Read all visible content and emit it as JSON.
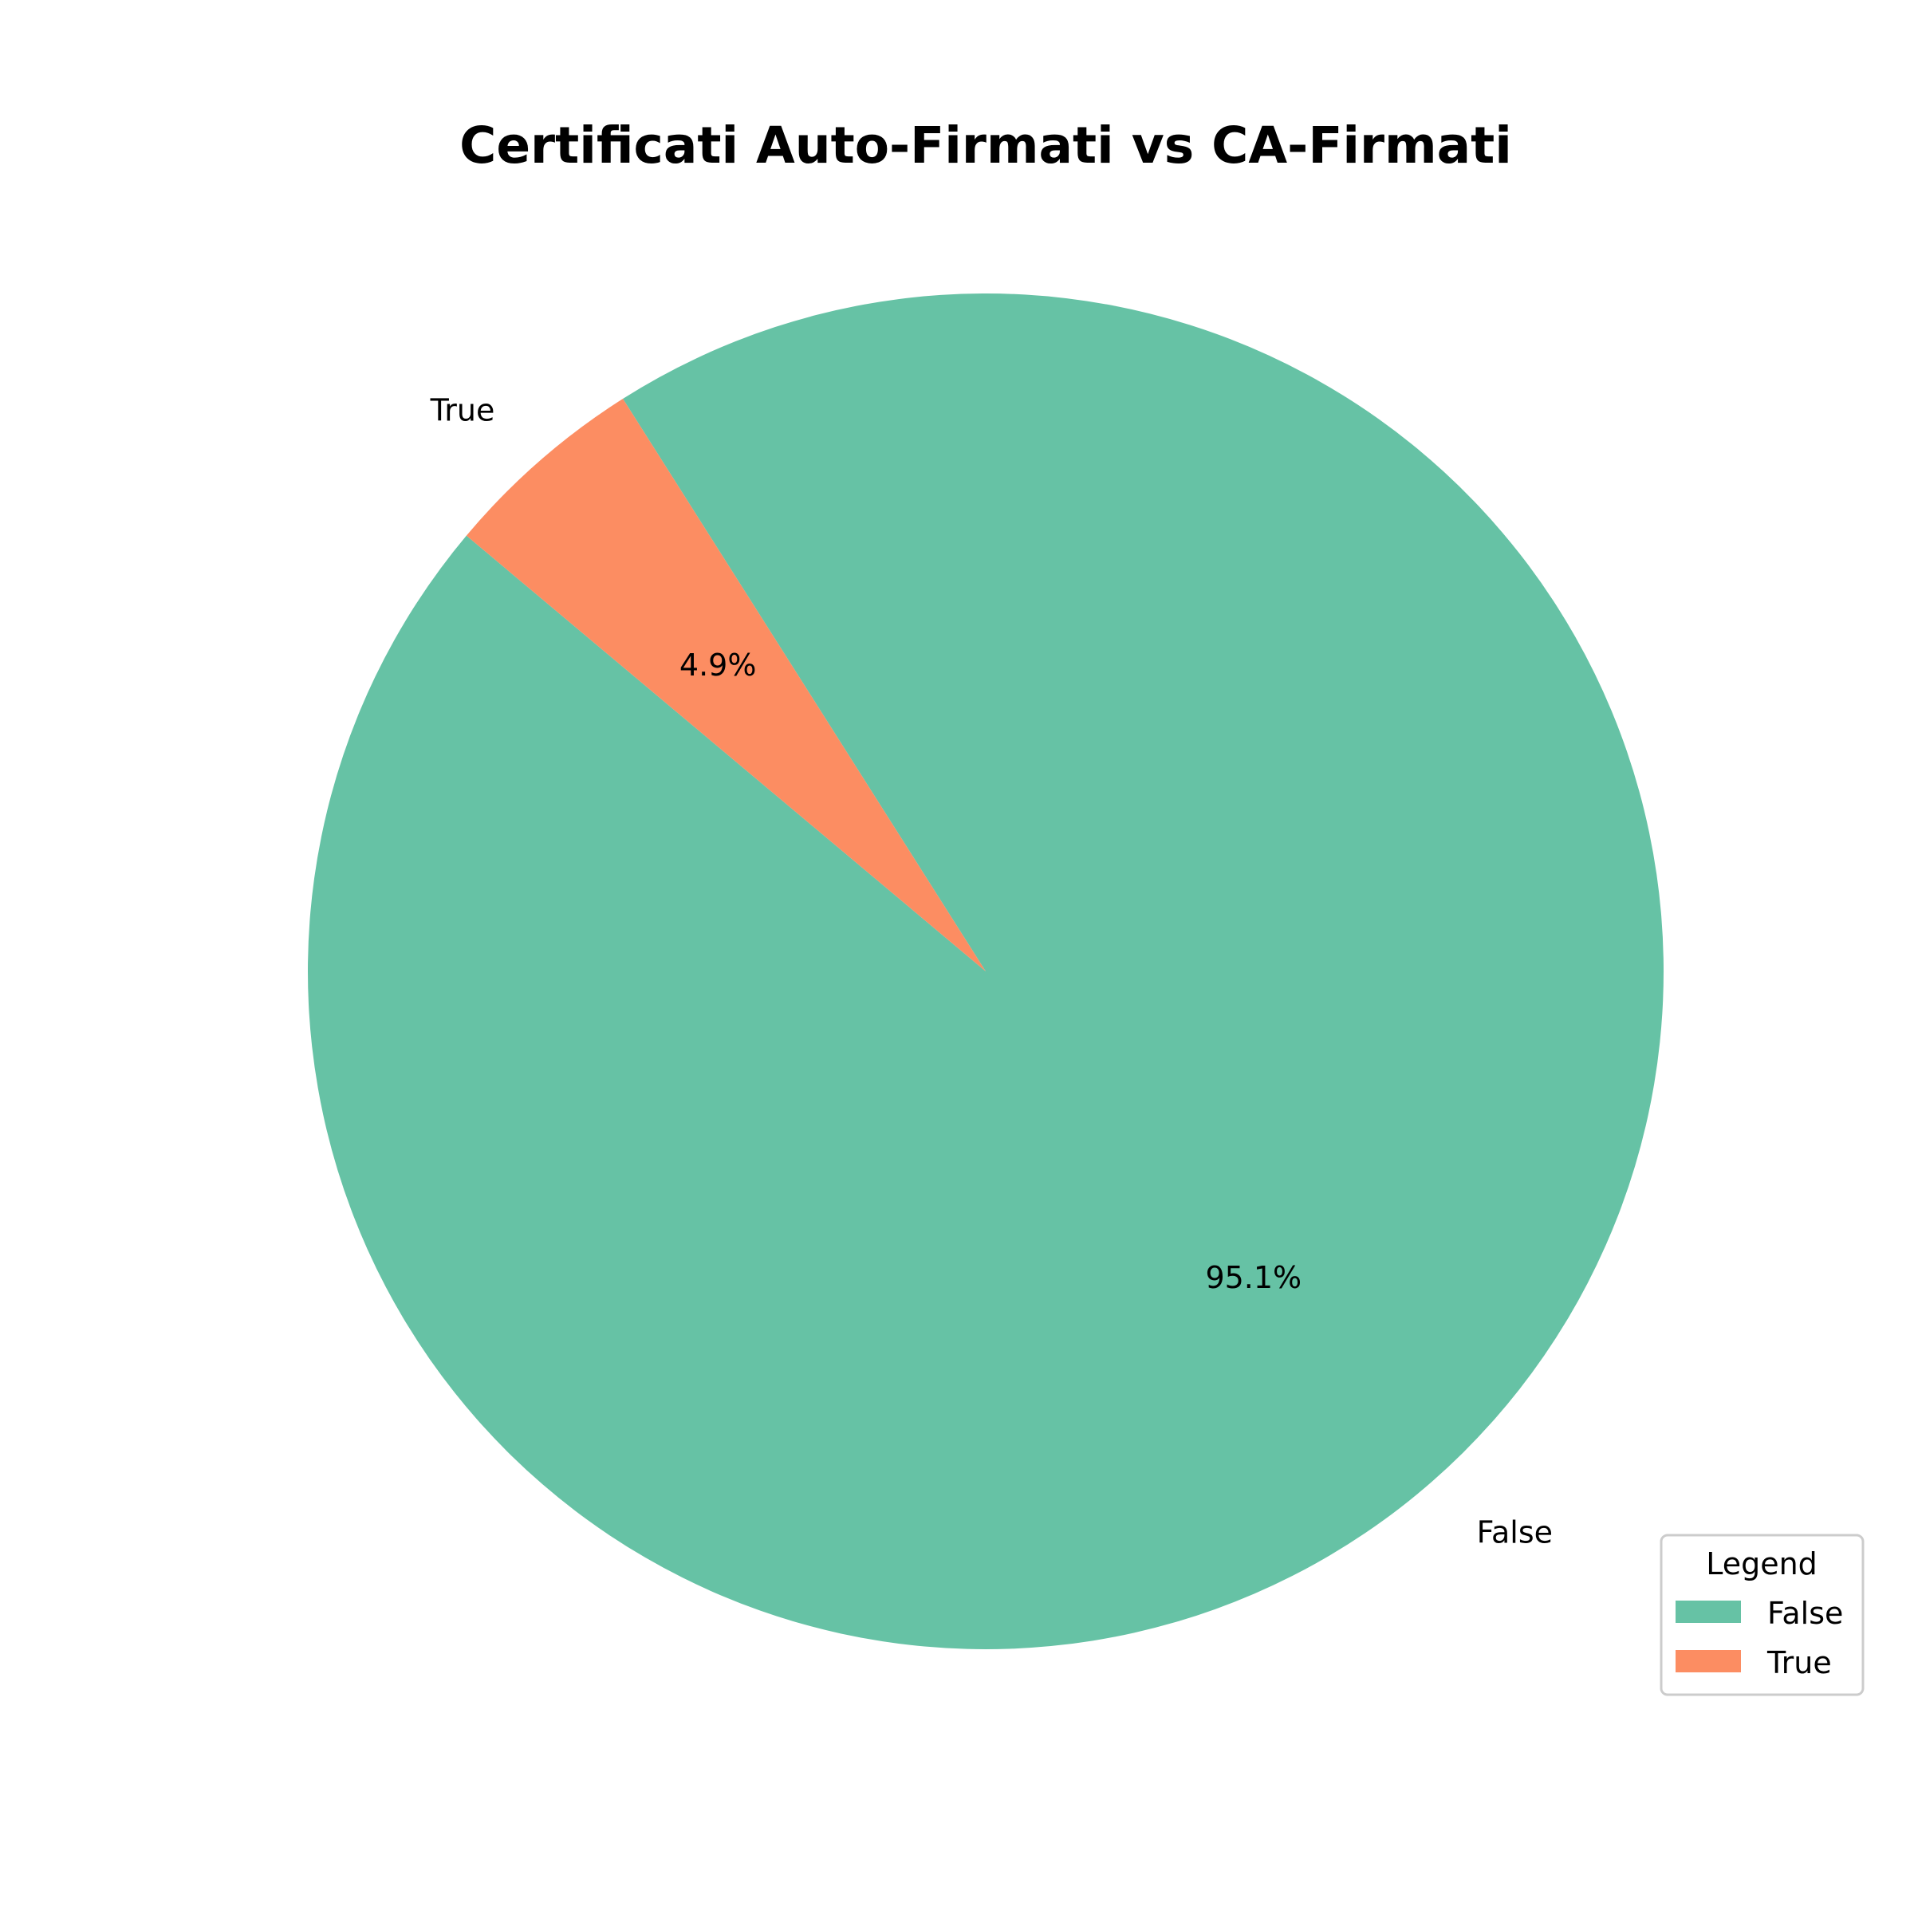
{
  "chart_data": {
    "type": "pie",
    "title": "Certificati Auto-Firmati vs CA-Firmati",
    "slices": [
      {
        "label": "False",
        "value": 95.1,
        "pct_label": "95.1%",
        "color": "#66c2a5"
      },
      {
        "label": "True",
        "value": 4.9,
        "pct_label": "4.9%",
        "color": "#fc8d62"
      }
    ],
    "start_angle_deg": 140,
    "legend": {
      "title": "Legend",
      "placement": "bottom-right",
      "items": [
        "False",
        "True"
      ]
    }
  }
}
